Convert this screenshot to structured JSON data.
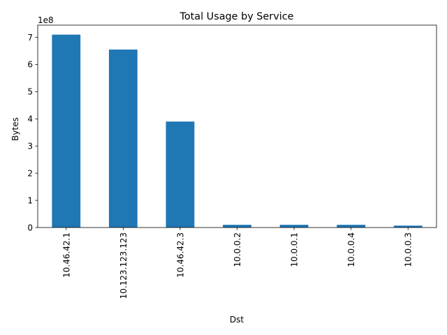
{
  "chart_data": {
    "type": "bar",
    "title": "Total Usage by Service",
    "xlabel": "Dst",
    "ylabel": "Bytes",
    "y_scale_label": "1e8",
    "categories": [
      "10.46.42.1",
      "10.123.123.123",
      "10.46.42.3",
      "10.0.0.2",
      "10.0.0.1",
      "10.0.0.4",
      "10.0.0.3"
    ],
    "values": [
      710000000,
      655000000,
      390000000,
      10000000,
      10000000,
      10000000,
      7000000
    ],
    "ylim": [
      0,
      745000000
    ],
    "yticks": [
      0,
      100000000,
      200000000,
      300000000,
      400000000,
      500000000,
      600000000,
      700000000
    ],
    "ytick_labels": [
      "0",
      "1",
      "2",
      "3",
      "4",
      "5",
      "6",
      "7"
    ],
    "bar_color": "#1f77b4",
    "grid": false,
    "legend": "none"
  }
}
